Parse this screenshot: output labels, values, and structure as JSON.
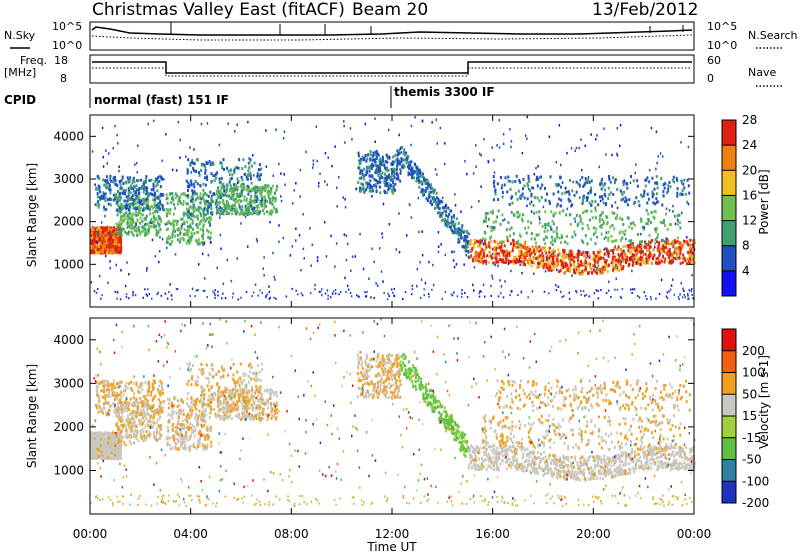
{
  "header": {
    "title": "Christmas Valley East (fitACF)",
    "beam": "Beam 20",
    "date": "13/Feb/2012"
  },
  "top_panels": {
    "nsky_label": "N.Sky",
    "nsky_ticks": [
      "10^5",
      "10^0"
    ],
    "nsearch_label": "N.Search",
    "nsearch_ticks": [
      "10^5",
      "10^0"
    ],
    "freq_label": "Freq.",
    "freq_unit": "[MHz]",
    "freq_ticks": [
      "18",
      "8"
    ],
    "nave_label": "Nave",
    "nave_ticks": [
      "60",
      "0"
    ],
    "cpid_label": "CPID",
    "cpid_segments": [
      "normal (fast) 151 IF",
      "themis 3300 IF"
    ]
  },
  "chart_data": [
    {
      "type": "heatmap",
      "title": "",
      "ylabel": "Slant Range [km]",
      "xlabel": "",
      "ylim": [
        0,
        4500
      ],
      "xlim": [
        "00:00",
        "00:00"
      ],
      "y_ticks": [
        "1000",
        "2000",
        "3000",
        "4000"
      ],
      "colorbar": {
        "label": "Power [dB]",
        "ticks": [
          "4",
          "8",
          "12",
          "16",
          "20",
          "24",
          "28"
        ],
        "colors": [
          "#1010f0",
          "#2050c0",
          "#40a070",
          "#70c050",
          "#f0c020",
          "#f08010",
          "#e02010"
        ]
      }
    },
    {
      "type": "heatmap",
      "title": "",
      "ylabel": "Slant Range [km]",
      "xlabel": "Time UT",
      "ylim": [
        0,
        4500
      ],
      "x_ticks": [
        "00:00",
        "04:00",
        "08:00",
        "12:00",
        "16:00",
        "20:00",
        "00:00"
      ],
      "y_ticks": [
        "1000",
        "2000",
        "3000",
        "4000"
      ],
      "colorbar": {
        "label": "Velocity [m s-1]",
        "ticks": [
          "200",
          "100",
          "50",
          "15",
          "-15",
          "-50",
          "-100",
          "-200"
        ],
        "colors": [
          "#2030c0",
          "#3080a0",
          "#60c040",
          "#a0d040",
          "#c8c8c0",
          "#f0a020",
          "#f06010",
          "#e01010"
        ]
      }
    }
  ]
}
